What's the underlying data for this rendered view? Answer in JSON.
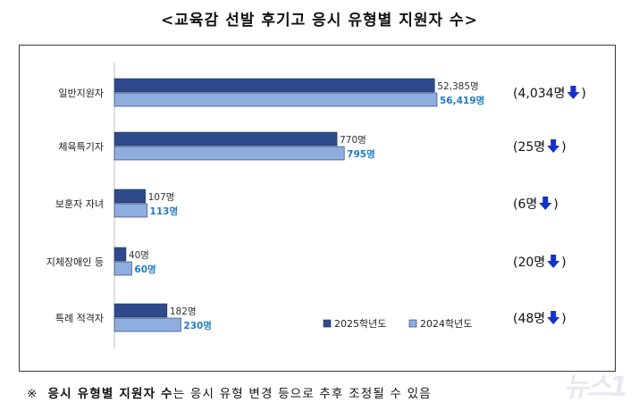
{
  "title": "<교육감 선발 후기고 응시 유형별 지원자 수>",
  "footnote": {
    "mark": "※",
    "bold_part": "응시 유형별 지원자 수",
    "rest": "는 응시 유형 변경 등으로 추후 조정될 수 있음"
  },
  "watermark": "뉴스1",
  "colors": {
    "series_2025": "#2f4b8c",
    "series_2024": "#8faee0",
    "label_2024": "#1f7bc4",
    "arrow": "#1431c8"
  },
  "chart_data": {
    "type": "bar",
    "orientation": "horizontal",
    "categories": [
      "일반지원자",
      "체육특기자",
      "보훈자 자녀",
      "지체장애인 등",
      "특례 적격자"
    ],
    "series": [
      {
        "name": "2025학년도",
        "values": [
          52385,
          770,
          107,
          40,
          182
        ],
        "labels": [
          "52,385명",
          "770명",
          "107명",
          "40명",
          "182명"
        ]
      },
      {
        "name": "2024학년도",
        "values": [
          56419,
          795,
          113,
          60,
          230
        ],
        "labels": [
          "56,419명",
          "795명",
          "113명",
          "60명",
          "230명"
        ]
      }
    ],
    "differences": [
      "(4,034명",
      "(25명",
      "(6명",
      "(20명",
      "(48명"
    ],
    "difference_direction": "down",
    "legend": {
      "placement": "bottom-right"
    },
    "grid": false
  }
}
